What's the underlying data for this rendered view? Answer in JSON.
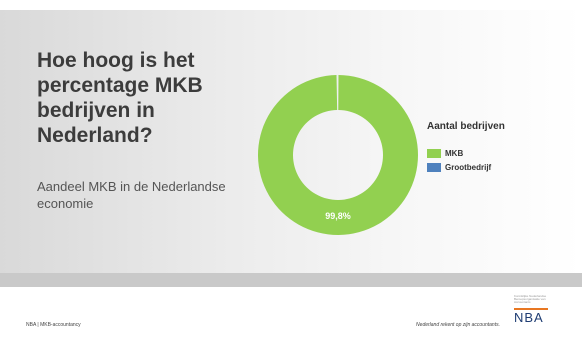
{
  "slide": {
    "title": "Hoe hoog is het percentage MKB bedrijven in Nederland?",
    "subtitle": "Aandeel MKB in de Nederlandse economie"
  },
  "colors": {
    "mkb": "#92d050",
    "grootbedrijf": "#4f81bd"
  },
  "chart_data": {
    "type": "pie",
    "variant": "donut",
    "legend_title": "Aantal bedrijven",
    "legend_position": "right",
    "categories": [
      "MKB",
      "Grootbedrijf"
    ],
    "values": [
      99.8,
      0.2
    ],
    "data_labels": [
      "99,8%",
      ""
    ]
  },
  "footer": {
    "left": "NBA | MKB-accountancy",
    "tagline": "Nederland rekent op zijn accountants.",
    "logo_text": "NBA",
    "logo_small": "Koninklijke Nederlandse Beroepsorganisatie van Accountants"
  }
}
